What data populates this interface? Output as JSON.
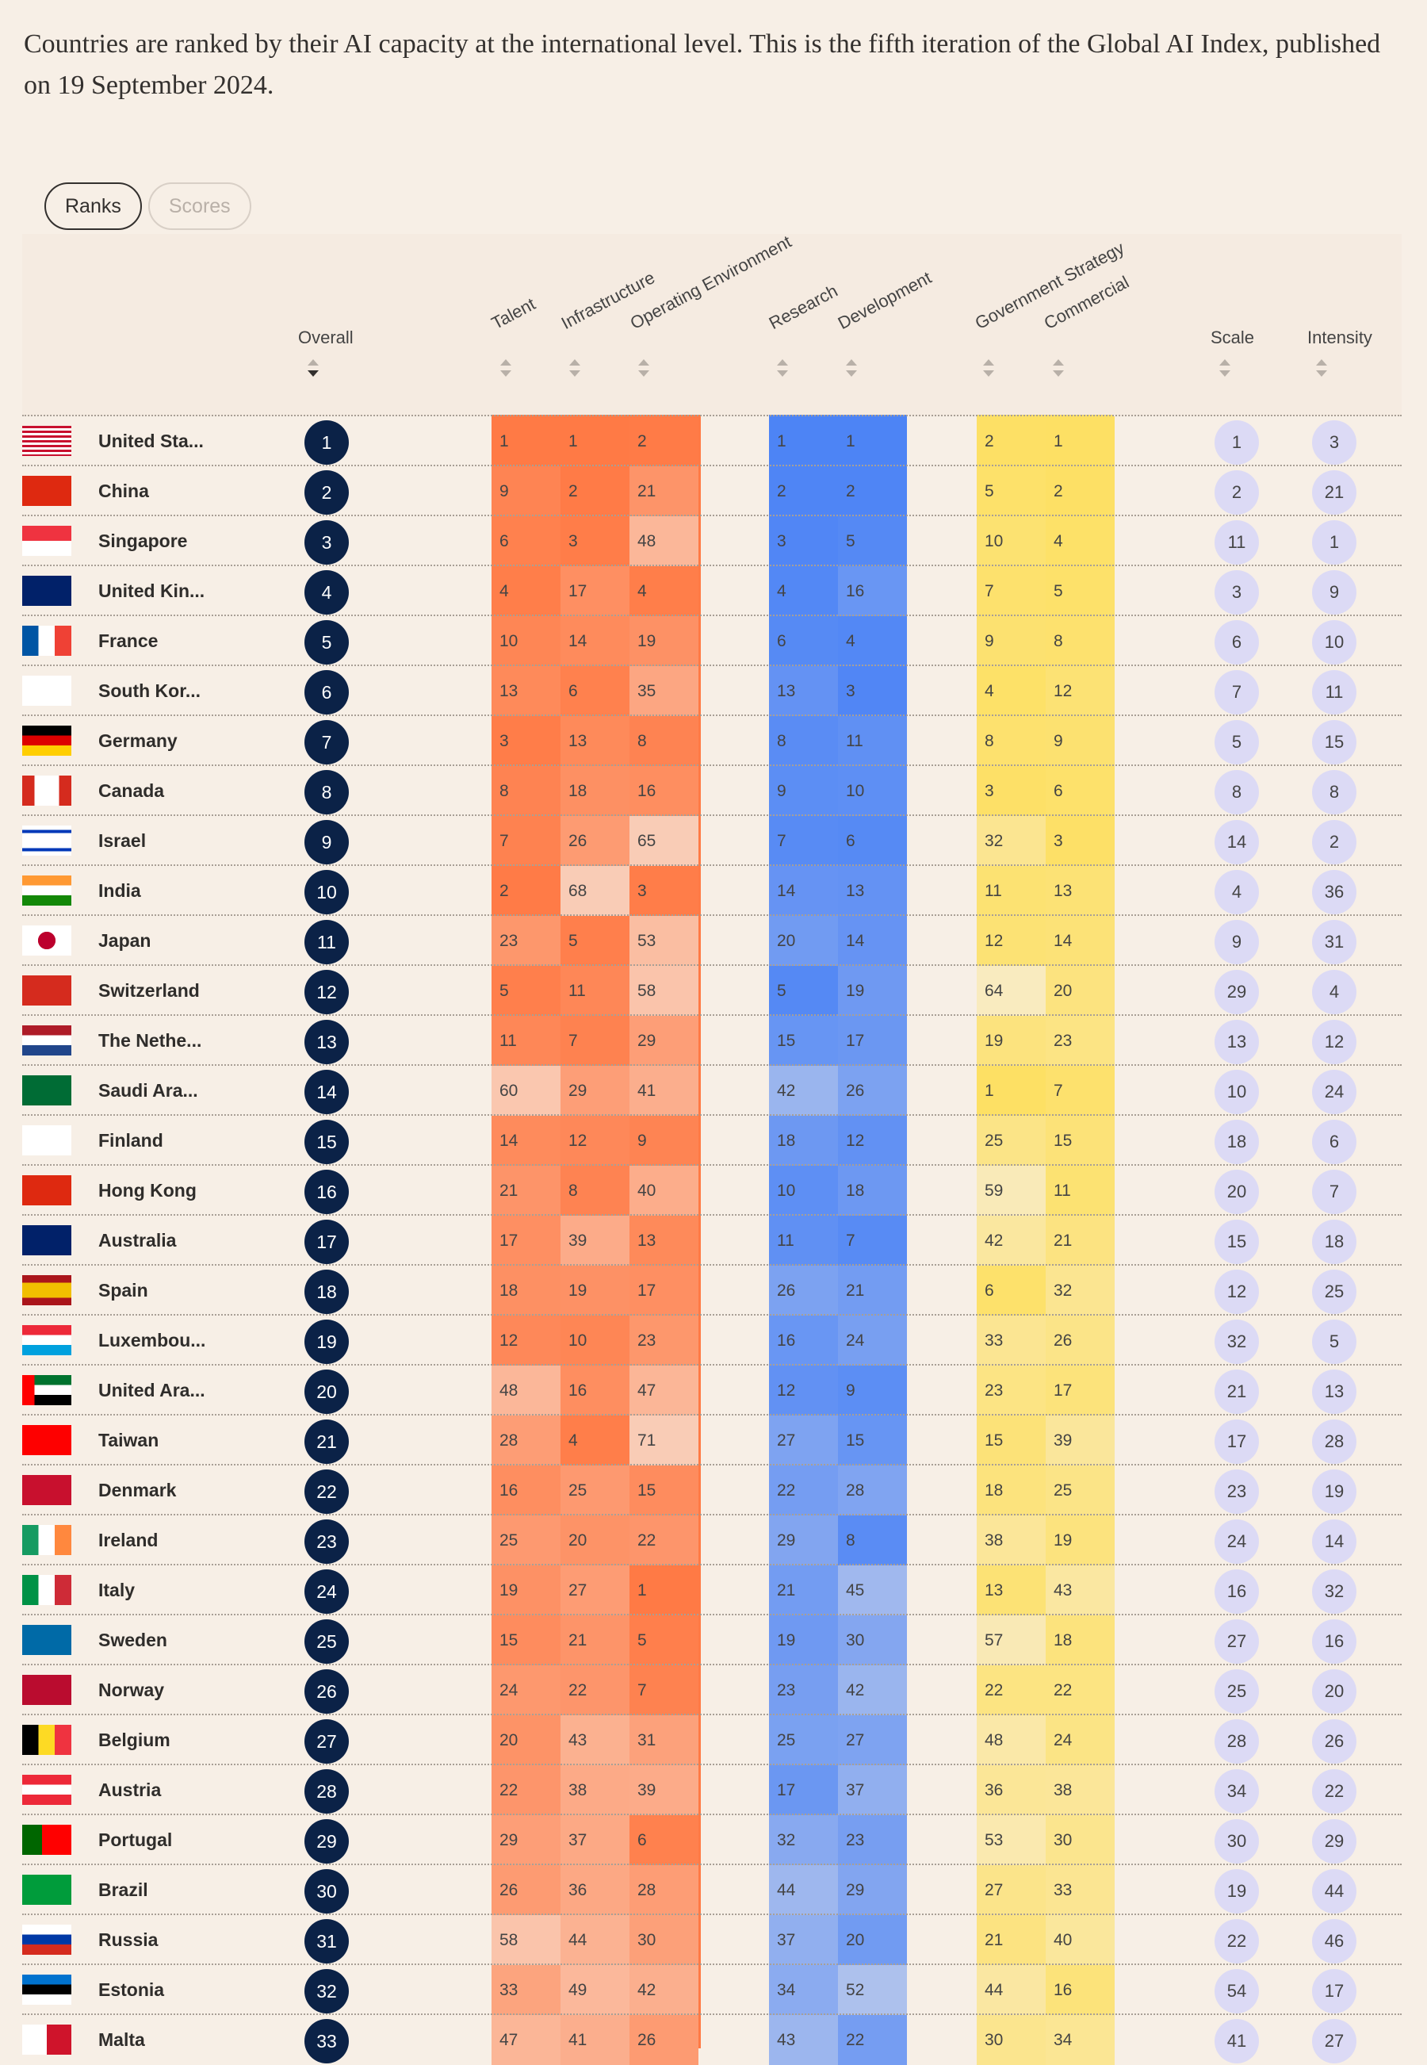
{
  "intro": "Countries are ranked by their AI capacity at the international level. This is the fifth iteration of the Global AI Index, published on 19 September 2024.",
  "toggle": {
    "ranks": "Ranks",
    "scores": "Scores"
  },
  "columns": {
    "overall": "Overall",
    "talent": "Talent",
    "infrastructure": "Infrastructure",
    "operating": "Operating Environment",
    "research": "Research",
    "development": "Development",
    "government": "Government Strategy",
    "commercial": "Commercial",
    "scale": "Scale",
    "intensity": "Intensity"
  },
  "colors": {
    "talent_group": "#ff7a45",
    "research_group": "#4d84f5",
    "government_group": "#fde064",
    "overall_badge": "#0b2247",
    "rank_circle": "#dcdaf5"
  },
  "rows": [
    {
      "country": "United Sta...",
      "flag": "us-flag-icon",
      "overall": "1",
      "t": "1",
      "i": "1",
      "o": "2",
      "r": "1",
      "d": "1",
      "g": "2",
      "c": "1",
      "s": "1",
      "n": "3"
    },
    {
      "country": "China",
      "flag": "china-flag-icon",
      "overall": "2",
      "t": "9",
      "i": "2",
      "o": "21",
      "r": "2",
      "d": "2",
      "g": "5",
      "c": "2",
      "s": "2",
      "n": "21"
    },
    {
      "country": "Singapore",
      "flag": "singapore-flag-icon",
      "overall": "3",
      "t": "6",
      "i": "3",
      "o": "48",
      "r": "3",
      "d": "5",
      "g": "10",
      "c": "4",
      "s": "11",
      "n": "1"
    },
    {
      "country": "United Kin...",
      "flag": "uk-flag-icon",
      "overall": "4",
      "t": "4",
      "i": "17",
      "o": "4",
      "r": "4",
      "d": "16",
      "g": "7",
      "c": "5",
      "s": "3",
      "n": "9"
    },
    {
      "country": "France",
      "flag": "france-flag-icon",
      "overall": "5",
      "t": "10",
      "i": "14",
      "o": "19",
      "r": "6",
      "d": "4",
      "g": "9",
      "c": "8",
      "s": "6",
      "n": "10"
    },
    {
      "country": "South Kor...",
      "flag": "south-korea-flag-icon",
      "overall": "6",
      "t": "13",
      "i": "6",
      "o": "35",
      "r": "13",
      "d": "3",
      "g": "4",
      "c": "12",
      "s": "7",
      "n": "11"
    },
    {
      "country": "Germany",
      "flag": "germany-flag-icon",
      "overall": "7",
      "t": "3",
      "i": "13",
      "o": "8",
      "r": "8",
      "d": "11",
      "g": "8",
      "c": "9",
      "s": "5",
      "n": "15"
    },
    {
      "country": "Canada",
      "flag": "canada-flag-icon",
      "overall": "8",
      "t": "8",
      "i": "18",
      "o": "16",
      "r": "9",
      "d": "10",
      "g": "3",
      "c": "6",
      "s": "8",
      "n": "8"
    },
    {
      "country": "Israel",
      "flag": "israel-flag-icon",
      "overall": "9",
      "t": "7",
      "i": "26",
      "o": "65",
      "r": "7",
      "d": "6",
      "g": "32",
      "c": "3",
      "s": "14",
      "n": "2"
    },
    {
      "country": "India",
      "flag": "india-flag-icon",
      "overall": "10",
      "t": "2",
      "i": "68",
      "o": "3",
      "r": "14",
      "d": "13",
      "g": "11",
      "c": "13",
      "s": "4",
      "n": "36"
    },
    {
      "country": "Japan",
      "flag": "japan-flag-icon",
      "overall": "11",
      "t": "23",
      "i": "5",
      "o": "53",
      "r": "20",
      "d": "14",
      "g": "12",
      "c": "14",
      "s": "9",
      "n": "31"
    },
    {
      "country": "Switzerland",
      "flag": "switzerland-flag-icon",
      "overall": "12",
      "t": "5",
      "i": "11",
      "o": "58",
      "r": "5",
      "d": "19",
      "g": "64",
      "c": "20",
      "s": "29",
      "n": "4"
    },
    {
      "country": "The Nethe...",
      "flag": "netherlands-flag-icon",
      "overall": "13",
      "t": "11",
      "i": "7",
      "o": "29",
      "r": "15",
      "d": "17",
      "g": "19",
      "c": "23",
      "s": "13",
      "n": "12"
    },
    {
      "country": "Saudi Ara...",
      "flag": "saudi-arabia-flag-icon",
      "overall": "14",
      "t": "60",
      "i": "29",
      "o": "41",
      "r": "42",
      "d": "26",
      "g": "1",
      "c": "7",
      "s": "10",
      "n": "24"
    },
    {
      "country": "Finland",
      "flag": "finland-flag-icon",
      "overall": "15",
      "t": "14",
      "i": "12",
      "o": "9",
      "r": "18",
      "d": "12",
      "g": "25",
      "c": "15",
      "s": "18",
      "n": "6"
    },
    {
      "country": "Hong Kong",
      "flag": "hong-kong-flag-icon",
      "overall": "16",
      "t": "21",
      "i": "8",
      "o": "40",
      "r": "10",
      "d": "18",
      "g": "59",
      "c": "11",
      "s": "20",
      "n": "7"
    },
    {
      "country": "Australia",
      "flag": "australia-flag-icon",
      "overall": "17",
      "t": "17",
      "i": "39",
      "o": "13",
      "r": "11",
      "d": "7",
      "g": "42",
      "c": "21",
      "s": "15",
      "n": "18"
    },
    {
      "country": "Spain",
      "flag": "spain-flag-icon",
      "overall": "18",
      "t": "18",
      "i": "19",
      "o": "17",
      "r": "26",
      "d": "21",
      "g": "6",
      "c": "32",
      "s": "12",
      "n": "25"
    },
    {
      "country": "Luxembou...",
      "flag": "luxembourg-flag-icon",
      "overall": "19",
      "t": "12",
      "i": "10",
      "o": "23",
      "r": "16",
      "d": "24",
      "g": "33",
      "c": "26",
      "s": "32",
      "n": "5"
    },
    {
      "country": "United Ara...",
      "flag": "uae-flag-icon",
      "overall": "20",
      "t": "48",
      "i": "16",
      "o": "47",
      "r": "12",
      "d": "9",
      "g": "23",
      "c": "17",
      "s": "21",
      "n": "13"
    },
    {
      "country": "Taiwan",
      "flag": "taiwan-flag-icon",
      "overall": "21",
      "t": "28",
      "i": "4",
      "o": "71",
      "r": "27",
      "d": "15",
      "g": "15",
      "c": "39",
      "s": "17",
      "n": "28"
    },
    {
      "country": "Denmark",
      "flag": "denmark-flag-icon",
      "overall": "22",
      "t": "16",
      "i": "25",
      "o": "15",
      "r": "22",
      "d": "28",
      "g": "18",
      "c": "25",
      "s": "23",
      "n": "19"
    },
    {
      "country": "Ireland",
      "flag": "ireland-flag-icon",
      "overall": "23",
      "t": "25",
      "i": "20",
      "o": "22",
      "r": "29",
      "d": "8",
      "g": "38",
      "c": "19",
      "s": "24",
      "n": "14"
    },
    {
      "country": "Italy",
      "flag": "italy-flag-icon",
      "overall": "24",
      "t": "19",
      "i": "27",
      "o": "1",
      "r": "21",
      "d": "45",
      "g": "13",
      "c": "43",
      "s": "16",
      "n": "32"
    },
    {
      "country": "Sweden",
      "flag": "sweden-flag-icon",
      "overall": "25",
      "t": "15",
      "i": "21",
      "o": "5",
      "r": "19",
      "d": "30",
      "g": "57",
      "c": "18",
      "s": "27",
      "n": "16"
    },
    {
      "country": "Norway",
      "flag": "norway-flag-icon",
      "overall": "26",
      "t": "24",
      "i": "22",
      "o": "7",
      "r": "23",
      "d": "42",
      "g": "22",
      "c": "22",
      "s": "25",
      "n": "20"
    },
    {
      "country": "Belgium",
      "flag": "belgium-flag-icon",
      "overall": "27",
      "t": "20",
      "i": "43",
      "o": "31",
      "r": "25",
      "d": "27",
      "g": "48",
      "c": "24",
      "s": "28",
      "n": "26"
    },
    {
      "country": "Austria",
      "flag": "austria-flag-icon",
      "overall": "28",
      "t": "22",
      "i": "38",
      "o": "39",
      "r": "17",
      "d": "37",
      "g": "36",
      "c": "38",
      "s": "34",
      "n": "22"
    },
    {
      "country": "Portugal",
      "flag": "portugal-flag-icon",
      "overall": "29",
      "t": "29",
      "i": "37",
      "o": "6",
      "r": "32",
      "d": "23",
      "g": "53",
      "c": "30",
      "s": "30",
      "n": "29"
    },
    {
      "country": "Brazil",
      "flag": "brazil-flag-icon",
      "overall": "30",
      "t": "26",
      "i": "36",
      "o": "28",
      "r": "44",
      "d": "29",
      "g": "27",
      "c": "33",
      "s": "19",
      "n": "44"
    },
    {
      "country": "Russia",
      "flag": "russia-flag-icon",
      "overall": "31",
      "t": "58",
      "i": "44",
      "o": "30",
      "r": "37",
      "d": "20",
      "g": "21",
      "c": "40",
      "s": "22",
      "n": "46"
    },
    {
      "country": "Estonia",
      "flag": "estonia-flag-icon",
      "overall": "32",
      "t": "33",
      "i": "49",
      "o": "42",
      "r": "34",
      "d": "52",
      "g": "44",
      "c": "16",
      "s": "54",
      "n": "17"
    },
    {
      "country": "Malta",
      "flag": "malta-flag-icon",
      "overall": "33",
      "t": "47",
      "i": "41",
      "o": "26",
      "r": "43",
      "d": "22",
      "g": "30",
      "c": "34",
      "s": "41",
      "n": "27"
    }
  ]
}
